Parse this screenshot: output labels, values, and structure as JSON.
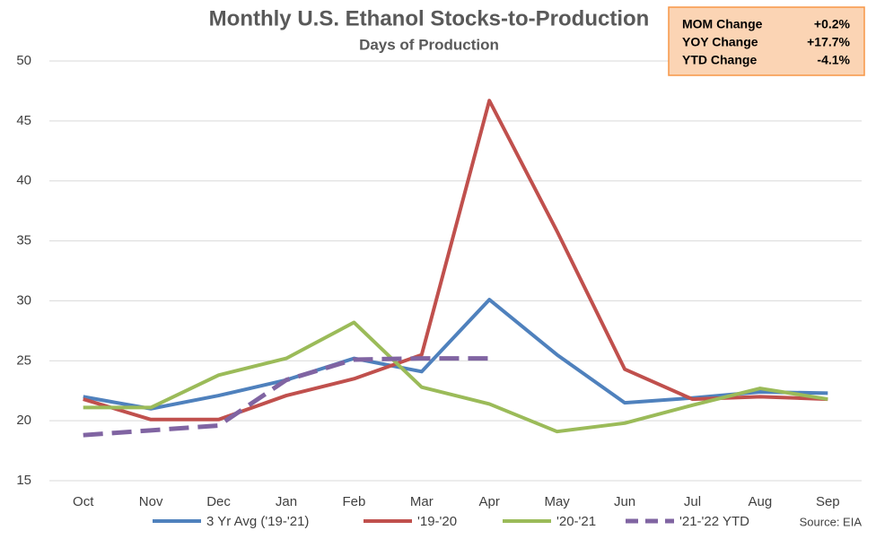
{
  "chart_data": {
    "type": "line",
    "title": "Monthly U.S. Ethanol Stocks-to-Production",
    "subtitle": "Days of Production",
    "categories": [
      "Oct",
      "Nov",
      "Dec",
      "Jan",
      "Feb",
      "Mar",
      "Apr",
      "May",
      "Jun",
      "Jul",
      "Aug",
      "Sep"
    ],
    "series": [
      {
        "name": "3 Yr Avg ('19-'21)",
        "color": "#4f81bd",
        "dashed": false,
        "values": [
          22.0,
          21.0,
          22.1,
          23.4,
          25.2,
          24.1,
          30.1,
          25.5,
          21.5,
          21.9,
          22.4,
          22.3
        ]
      },
      {
        "name": "'19-'20",
        "color": "#c0504d",
        "dashed": false,
        "values": [
          21.8,
          20.1,
          20.1,
          22.1,
          23.5,
          25.5,
          46.7,
          35.8,
          24.3,
          21.8,
          22.0,
          21.8
        ]
      },
      {
        "name": "'20-'21",
        "color": "#9bbb59",
        "dashed": false,
        "values": [
          21.1,
          21.1,
          23.8,
          25.2,
          28.2,
          22.8,
          21.4,
          19.1,
          19.8,
          21.3,
          22.7,
          21.8
        ]
      },
      {
        "name": "'21-'22 YTD",
        "color": "#8064a2",
        "dashed": true,
        "values": [
          18.8,
          19.2,
          19.6,
          23.4,
          25.1,
          25.2,
          25.2,
          null,
          null,
          null,
          null,
          null
        ]
      }
    ],
    "ylim": [
      15,
      50
    ],
    "yticks": [
      15,
      20,
      25,
      30,
      35,
      40,
      45,
      50
    ],
    "grid": true,
    "summary": [
      {
        "label": "MOM Change",
        "value": "+0.2%"
      },
      {
        "label": "YOY Change",
        "value": "+17.7%"
      },
      {
        "label": "YTD Change",
        "value": "-4.1%"
      }
    ],
    "source": "Source: EIA"
  }
}
